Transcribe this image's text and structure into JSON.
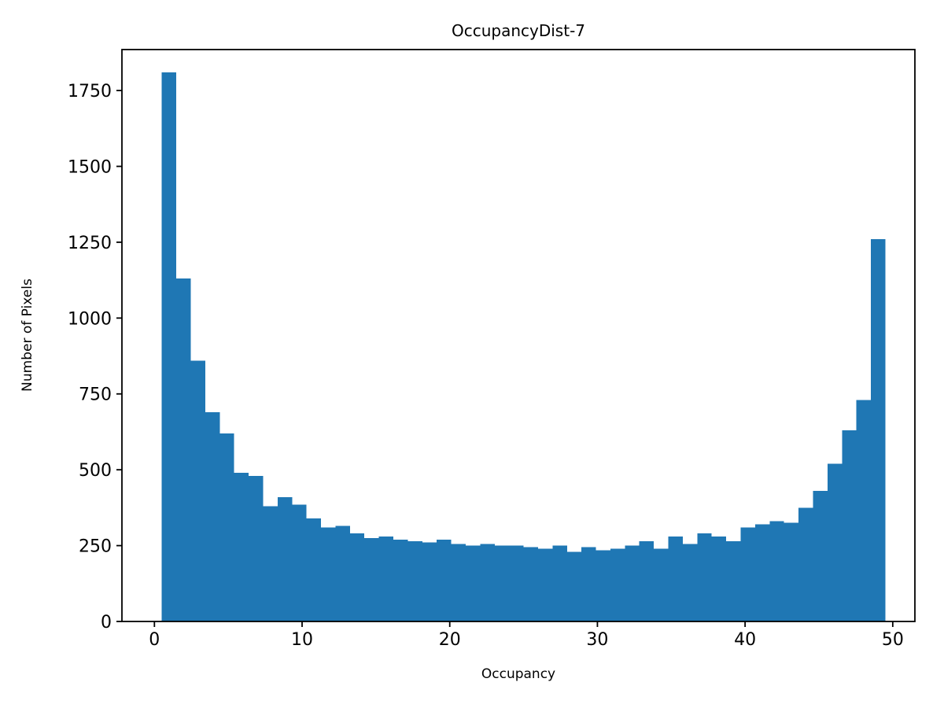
{
  "figure": {
    "background": "#ffffff",
    "text_color": "#000000"
  },
  "chart_data": {
    "type": "bar",
    "subtype": "histogram",
    "title": "OccupancyDist-7",
    "xlabel": "Occupancy",
    "ylabel": "Number of Pixels",
    "bar_color": "#1f77b4",
    "grid": false,
    "legend": null,
    "bin_start": 0.5,
    "bin_width": 0.98,
    "n_bins": 50,
    "counts": [
      1810,
      1130,
      860,
      690,
      620,
      490,
      480,
      380,
      410,
      385,
      340,
      310,
      315,
      290,
      275,
      280,
      270,
      265,
      260,
      270,
      255,
      250,
      255,
      250,
      250,
      245,
      240,
      250,
      230,
      245,
      235,
      240,
      250,
      265,
      240,
      280,
      255,
      290,
      280,
      265,
      310,
      320,
      330,
      325,
      375,
      430,
      520,
      630,
      730,
      1260
    ],
    "xlim": [
      -2.2,
      51.5
    ],
    "ylim": [
      0,
      1885
    ],
    "xticks": [
      0,
      10,
      20,
      30,
      40,
      50
    ],
    "yticks": [
      0,
      250,
      500,
      750,
      1000,
      1250,
      1500,
      1750
    ]
  }
}
